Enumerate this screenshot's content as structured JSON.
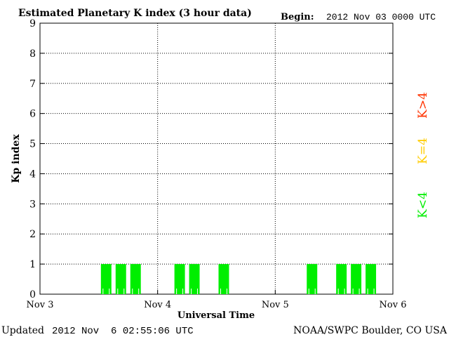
{
  "header": {
    "title": "Estimated Planetary K index (3 hour data)",
    "begin_label": "Begin:",
    "begin_value": "2012 Nov 03 0000 UTC"
  },
  "footer": {
    "updated_label": "Updated",
    "updated_value": "2012 Nov  6 02:55:06 UTC",
    "source": "NOAA/SWPC Boulder, CO USA"
  },
  "chart_data": {
    "type": "bar",
    "title": "Estimated Planetary K index (3 hour data)",
    "xlabel": "Universal Time",
    "ylabel": "Kp index",
    "ylim": [
      0,
      9
    ],
    "yticks": [
      "0",
      "1",
      "2",
      "3",
      "4",
      "5",
      "6",
      "7",
      "8",
      "9"
    ],
    "xticks": [
      "Nov 3",
      "Nov 4",
      "Nov 5",
      "Nov 6"
    ],
    "grid": true,
    "interval_hours": 3,
    "categories": [
      "Nov 3 00",
      "Nov 3 03",
      "Nov 3 06",
      "Nov 3 09",
      "Nov 3 12",
      "Nov 3 15",
      "Nov 3 18",
      "Nov 3 21",
      "Nov 4 00",
      "Nov 4 03",
      "Nov 4 06",
      "Nov 4 09",
      "Nov 4 12",
      "Nov 4 15",
      "Nov 4 18",
      "Nov 4 21",
      "Nov 5 00",
      "Nov 5 03",
      "Nov 5 06",
      "Nov 5 09",
      "Nov 5 12",
      "Nov 5 15",
      "Nov 5 18",
      "Nov 5 21"
    ],
    "values": [
      0,
      0,
      0,
      0,
      1,
      1,
      1,
      0,
      0,
      1,
      1,
      0,
      1,
      0,
      0,
      0,
      0,
      0,
      1,
      0,
      1,
      1,
      1,
      0
    ],
    "legend": [
      {
        "label": "K>4",
        "color": "#ff3300"
      },
      {
        "label": "K=4",
        "color": "#ffcc00"
      },
      {
        "label": "K<4",
        "color": "#00ee00"
      }
    ],
    "bar_color": "#00ee00"
  }
}
